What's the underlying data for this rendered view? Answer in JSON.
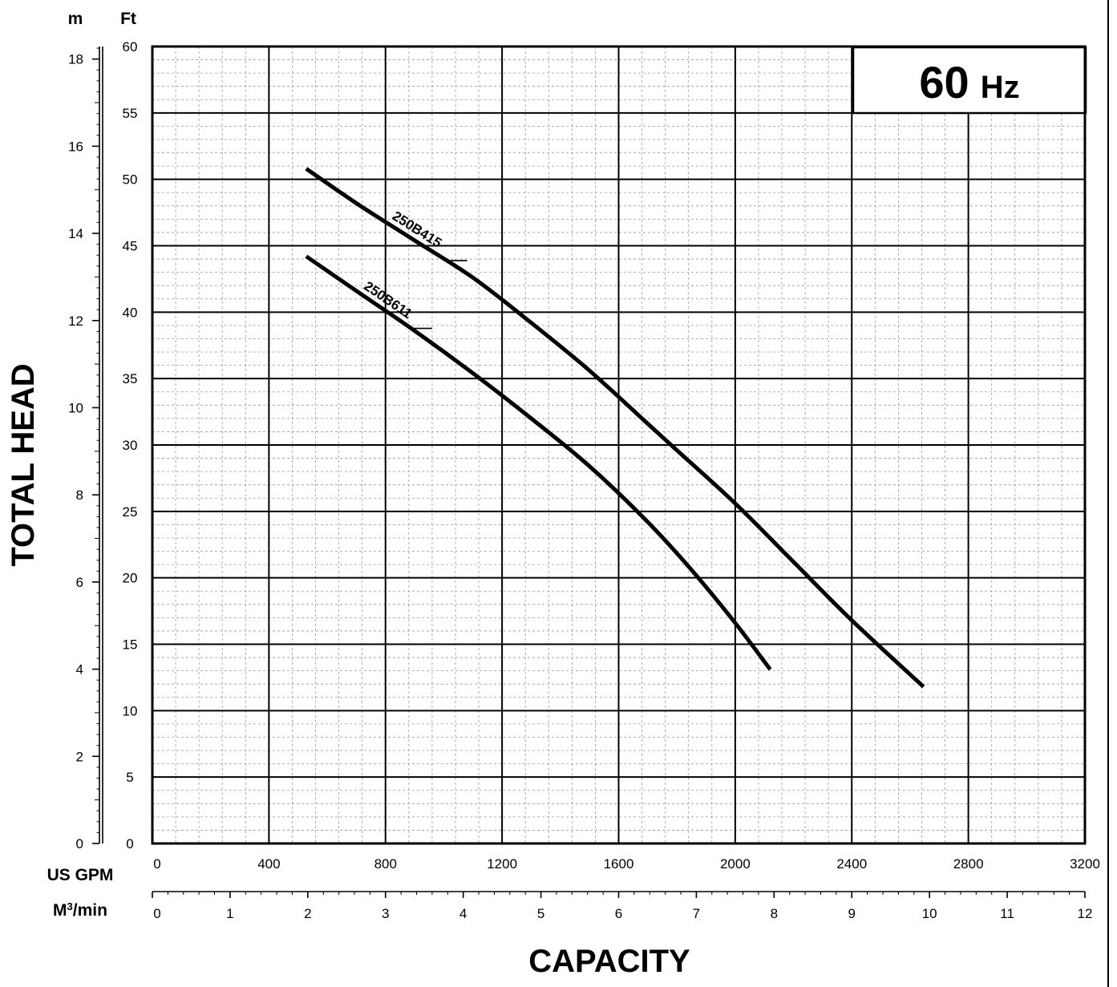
{
  "chart_data": {
    "type": "line",
    "badge": {
      "value": "60",
      "unit": "Hz"
    },
    "xlabel": "CAPACITY",
    "ylabel": "TOTAL HEAD",
    "x_axis_primary": {
      "unit": "US GPM",
      "range": [
        0,
        3200
      ],
      "ticks": [
        0,
        400,
        800,
        1200,
        1600,
        2000,
        2400,
        2800,
        3200
      ]
    },
    "x_axis_secondary": {
      "unit_base": "M",
      "unit_sup": "3",
      "unit_rest": "/min",
      "range": [
        0,
        12
      ],
      "ticks": [
        0,
        1,
        2,
        3,
        4,
        5,
        6,
        7,
        8,
        9,
        10,
        11,
        12
      ]
    },
    "y_axis_ft": {
      "unit": "Ft",
      "range": [
        0,
        60
      ],
      "ticks": [
        0,
        5,
        10,
        15,
        20,
        25,
        30,
        35,
        40,
        45,
        50,
        55,
        60
      ]
    },
    "y_axis_m": {
      "unit": "m",
      "range": [
        0,
        18.288
      ],
      "ticks": [
        0,
        2,
        4,
        6,
        8,
        10,
        12,
        14,
        16,
        18
      ]
    },
    "grid": true,
    "series": [
      {
        "name": "250B415",
        "color": "#000000",
        "points": [
          [
            528,
            50.8
          ],
          [
            700,
            48.2
          ],
          [
            900,
            45.4
          ],
          [
            1100,
            42.6
          ],
          [
            1300,
            39.2
          ],
          [
            1500,
            35.6
          ],
          [
            1700,
            31.6
          ],
          [
            1800,
            29.6
          ],
          [
            2000,
            25.6
          ],
          [
            2200,
            21.2
          ],
          [
            2400,
            16.8
          ],
          [
            2646,
            11.8
          ]
        ]
      },
      {
        "name": "250B611",
        "color": "#000000",
        "points": [
          [
            528,
            44.2
          ],
          [
            700,
            41.6
          ],
          [
            900,
            38.6
          ],
          [
            1100,
            35.4
          ],
          [
            1300,
            32.0
          ],
          [
            1500,
            28.4
          ],
          [
            1700,
            24.2
          ],
          [
            1850,
            20.6
          ],
          [
            2000,
            16.6
          ],
          [
            2120,
            13.1
          ]
        ]
      }
    ]
  }
}
